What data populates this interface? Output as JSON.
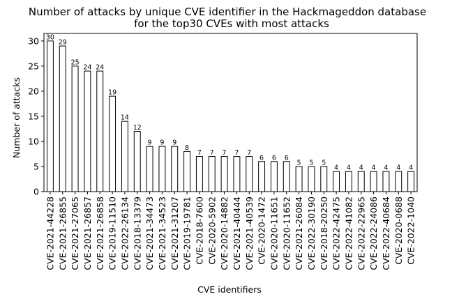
{
  "chart_data": {
    "type": "bar",
    "title": "Number of attacks by unique CVE identifier in the Hackmageddon database",
    "subtitle": "for the top30 CVEs with most attacks",
    "xlabel": "CVE identifiers",
    "ylabel": "Number of attacks",
    "ylim": [
      0,
      31.5
    ],
    "yticks": [
      0,
      5,
      10,
      15,
      20,
      25,
      30
    ],
    "grid": false,
    "categories": [
      "CVE-2021-44228",
      "CVE-2021-26855",
      "CVE-2021-27065",
      "CVE-2021-26857",
      "CVE-2021-26858",
      "CVE-2019-11510",
      "CVE-2022-26134",
      "CVE-2018-13379",
      "CVE-2021-34473",
      "CVE-2021-34523",
      "CVE-2021-31207",
      "CVE-2019-19781",
      "CVE-2018-7600",
      "CVE-2020-5902",
      "CVE-2020-14882",
      "CVE-2021-40444",
      "CVE-2021-40539",
      "CVE-2020-1472",
      "CVE-2020-11651",
      "CVE-2020-11652",
      "CVE-2021-26084",
      "CVE-2022-30190",
      "CVE-2018-20250",
      "CVE-2022-42475",
      "CVE-2022-41082",
      "CVE-2022-22965",
      "CVE-2022-24086",
      "CVE-2022-40684",
      "CVE-2020-0688",
      "CVE-2022-1040"
    ],
    "values": [
      30,
      29,
      25,
      24,
      24,
      19,
      14,
      12,
      9,
      9,
      9,
      8,
      7,
      7,
      7,
      7,
      7,
      6,
      6,
      6,
      5,
      5,
      5,
      4,
      4,
      4,
      4,
      4,
      4,
      4
    ],
    "data_labels": true,
    "bar_fill": "#ffffff",
    "bar_edge": "#000000"
  }
}
